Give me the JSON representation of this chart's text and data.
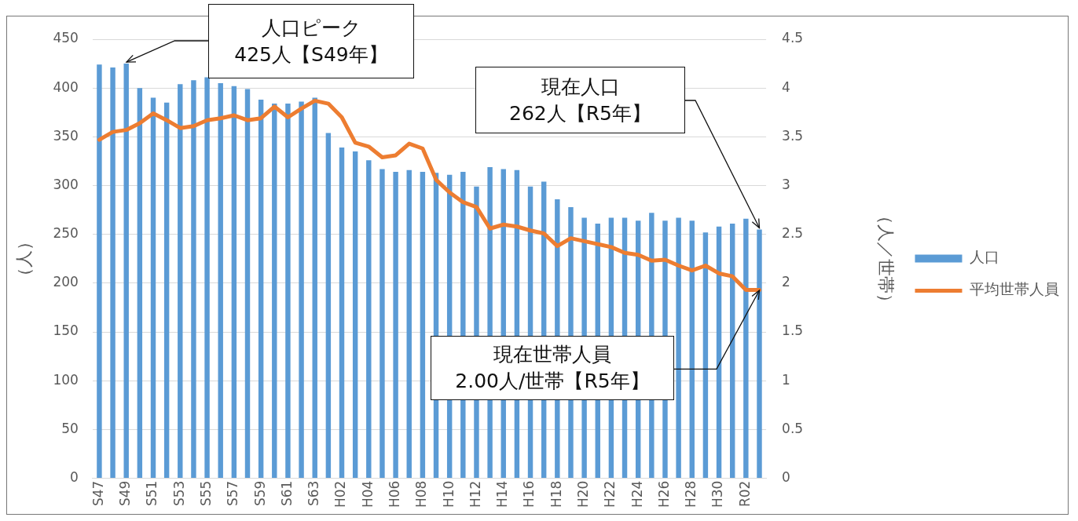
{
  "chart_data": {
    "type": "bar",
    "ylabel": "（人）",
    "y2label": "（人／世帯）",
    "categories": [
      "S47",
      null,
      "S49",
      null,
      "S51",
      null,
      "S53",
      null,
      "S55",
      null,
      "S57",
      null,
      "S59",
      null,
      "S61",
      null,
      "S63",
      null,
      "H02",
      null,
      "H04",
      null,
      "H06",
      null,
      "H08",
      null,
      "H10",
      null,
      "H12",
      null,
      "H14",
      null,
      "H16",
      null,
      "H18",
      null,
      "H20",
      null,
      "H22",
      null,
      "H24",
      null,
      "H26",
      null,
      "H28",
      null,
      "H30",
      null,
      "R02",
      null
    ],
    "series": [
      {
        "name": "人口",
        "color": "#5b9bd5",
        "values": [
          424,
          421,
          425,
          400,
          390,
          385,
          404,
          408,
          411,
          405,
          402,
          399,
          388,
          384,
          384,
          386,
          390,
          354,
          339,
          335,
          326,
          317,
          314,
          316,
          314,
          313,
          311,
          314,
          299,
          319,
          317,
          316,
          299,
          304,
          286,
          278,
          267,
          261,
          267,
          267,
          264,
          272,
          264,
          267,
          264,
          252,
          258,
          261,
          266,
          255
        ]
      },
      {
        "name": "平均世帯人員",
        "type": "line",
        "axis": "y2",
        "color": "#ed7d31",
        "values": [
          3.47,
          3.55,
          3.57,
          3.64,
          3.74,
          3.67,
          3.59,
          3.61,
          3.67,
          3.69,
          3.72,
          3.67,
          3.69,
          3.81,
          3.7,
          3.79,
          3.87,
          3.84,
          3.7,
          3.44,
          3.4,
          3.29,
          3.31,
          3.43,
          3.38,
          3.06,
          2.93,
          2.83,
          2.78,
          2.56,
          2.6,
          2.58,
          2.54,
          2.51,
          2.38,
          2.46,
          2.43,
          2.4,
          2.37,
          2.31,
          2.29,
          2.23,
          2.24,
          2.18,
          2.13,
          2.18,
          2.1,
          2.07,
          1.93,
          1.93
        ]
      }
    ],
    "ylim": [
      0,
      450
    ],
    "yticks": [
      0,
      50,
      100,
      150,
      200,
      250,
      300,
      350,
      400,
      450
    ],
    "y2lim": [
      0,
      4.5
    ],
    "y2ticks": [
      0,
      0.5,
      1,
      1.5,
      2,
      2.5,
      3,
      3.5,
      4,
      4.5
    ],
    "grid": "y",
    "legend": "right",
    "marker": "none",
    "annotations": [
      "人口ピーク\n425人【S49年】",
      "現在人口\n262人【R5年】",
      {
        "text": "現在世帯人員\n2.00人/世帯【R5年】",
        "y": 193
      }
    ]
  }
}
